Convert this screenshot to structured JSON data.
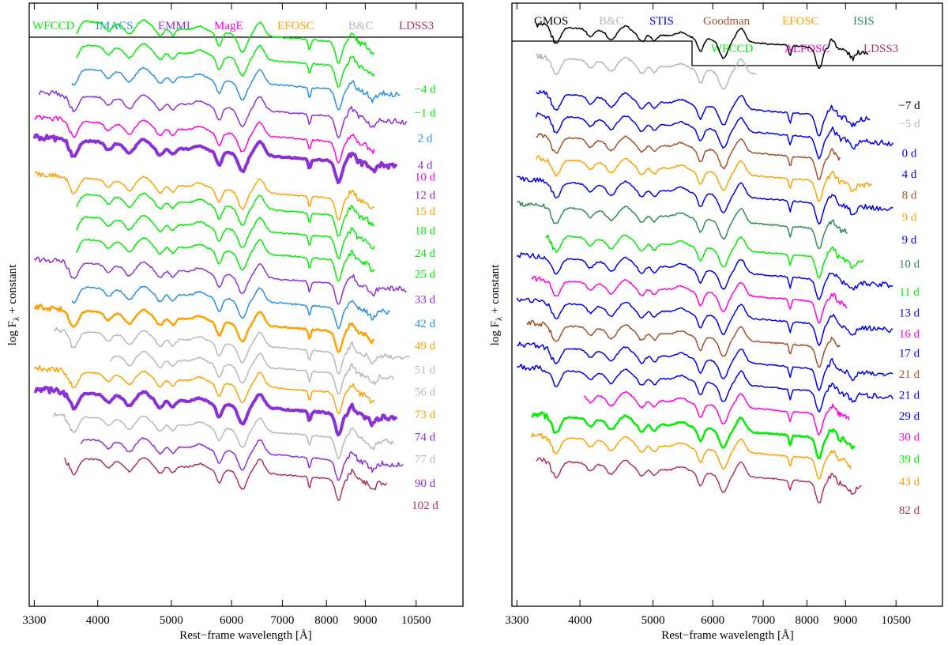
{
  "chart_data": [
    {
      "type": "line",
      "title": "",
      "xlabel": "Rest−frame wavelength [Å]",
      "ylabel": "log Fλ + constant",
      "ylabel_main": "log F",
      "ylabel_sub": "λ",
      "ylabel_tail": " + constant",
      "xlim": [
        3250,
        12100
      ],
      "x_scale": "log",
      "xticks": [
        3300,
        4000,
        5000,
        6000,
        7000,
        8000,
        9000,
        10500
      ],
      "xtick_labels": [
        "3300",
        "4000",
        "5000",
        "6000",
        "7000",
        "8000",
        "9000",
        "10500"
      ],
      "ylim": [
        0,
        20.2
      ],
      "legend": {
        "position": "top",
        "entries": [
          {
            "name": "WFCCD",
            "color": "#00ee00"
          },
          {
            "name": "IMACS",
            "color": "#2a8fe0"
          },
          {
            "name": "EMMI",
            "color": "#8b2fd6"
          },
          {
            "name": "MagE",
            "color": "#ff00e0"
          },
          {
            "name": "EFOSC",
            "color": "#ffa000"
          },
          {
            "name": "B&C",
            "color": "#b8b8b8"
          },
          {
            "name": "LDSS3",
            "color": "#b03060"
          }
        ]
      },
      "series": [
        {
          "name": "-4 d",
          "label": "−4 d",
          "instrument": "WFCCD",
          "color": "#00ee00",
          "x_range": [
            3750,
            9250
          ],
          "offset": 18.3,
          "label_level": 17.2,
          "width": 1.5
        },
        {
          "name": "-1 d",
          "label": "−1 d",
          "instrument": "WFCCD",
          "color": "#00ee00",
          "x_range": [
            3750,
            9250
          ],
          "offset": 17.5,
          "label_level": 16.4,
          "width": 1.5
        },
        {
          "name": "2 d",
          "label": "2 d",
          "instrument": "IMACS",
          "color": "#2a8fe0",
          "x_range": [
            3700,
            10000
          ],
          "offset": 16.7,
          "label_level": 15.55,
          "width": 1.5
        },
        {
          "name": "4 d",
          "label": "4 d",
          "instrument": "EMMI",
          "color": "#8b2fd6",
          "x_range": [
            3350,
            10200
          ],
          "offset": 15.8,
          "label_level": 14.65,
          "width": 1.5
        },
        {
          "name": "10 d",
          "label": "10 d",
          "instrument": "MagE",
          "color": "#ff00e0",
          "x_range": [
            3300,
            9250
          ],
          "offset": 14.95,
          "label_level": 14.25,
          "width": 1.5
        },
        {
          "name": "12 d",
          "label": "12 d",
          "instrument": "EMMI",
          "color": "#8b2fd6",
          "x_range": [
            3300,
            9900
          ],
          "offset": 14.3,
          "label_level": 13.65,
          "width": 4
        },
        {
          "name": "15 d",
          "label": "15 d",
          "instrument": "EFOSC",
          "color": "#ffa000",
          "x_range": [
            3300,
            9250
          ],
          "offset": 13.05,
          "label_level": 13.1,
          "width": 1.5
        },
        {
          "name": "18 d",
          "label": "18 d",
          "instrument": "WFCCD",
          "color": "#00ee00",
          "x_range": [
            3750,
            9250
          ],
          "offset": 12.5,
          "label_level": 12.45,
          "width": 1.5
        },
        {
          "name": "24 d",
          "label": "24 d",
          "instrument": "WFCCD",
          "color": "#00ee00",
          "x_range": [
            3750,
            9250
          ],
          "offset": 11.75,
          "label_level": 11.7,
          "width": 1.5
        },
        {
          "name": "25 d",
          "label": "25 d",
          "instrument": "WFCCD",
          "color": "#00ee00",
          "x_range": [
            3750,
            9250
          ],
          "offset": 11.0,
          "label_level": 11.0,
          "width": 1.5
        },
        {
          "name": "33 d",
          "label": "33 d",
          "instrument": "EMMI",
          "color": "#8b2fd6",
          "x_range": [
            3300,
            10200
          ],
          "offset": 10.2,
          "label_level": 10.15,
          "width": 1.5
        },
        {
          "name": "42 d",
          "label": "42 d",
          "instrument": "IMACS",
          "color": "#2a8fe0",
          "x_range": [
            3700,
            9700
          ],
          "offset": 9.4,
          "label_level": 9.35,
          "width": 1.5
        },
        {
          "name": "49 d",
          "label": "49 d",
          "instrument": "EFOSC",
          "color": "#ffa000",
          "x_range": [
            3300,
            9250
          ],
          "offset": 8.6,
          "label_level": 8.6,
          "width": 2.5
        },
        {
          "name": "51 d",
          "label": "51 d",
          "instrument": "B&C",
          "color": "#b8b8b8",
          "x_range": [
            3500,
            10300
          ],
          "offset": 7.9,
          "label_level": 7.8,
          "width": 1.5
        },
        {
          "name": "56 d",
          "label": "56 d",
          "instrument": "B&C",
          "color": "#b8b8b8",
          "x_range": [
            4150,
            9800
          ],
          "offset": 7.2,
          "label_level": 7.05,
          "width": 1.5
        },
        {
          "name": "73 d",
          "label": "73 d",
          "instrument": "EFOSC",
          "color": "#ffa000",
          "x_range": [
            3300,
            9250
          ],
          "offset": 6.55,
          "label_level": 6.3,
          "width": 1.5
        },
        {
          "name": "74 d",
          "label": "74 d",
          "instrument": "EMMI",
          "color": "#8b2fd6",
          "x_range": [
            3300,
            9900
          ],
          "offset": 5.85,
          "label_level": 5.55,
          "width": 4
        },
        {
          "name": "77 d",
          "label": "77 d",
          "instrument": "B&C",
          "color": "#b8b8b8",
          "x_range": [
            3500,
            9800
          ],
          "offset": 5.05,
          "label_level": 4.8,
          "width": 1.5
        },
        {
          "name": "90 d",
          "label": "90 d",
          "instrument": "EMMI",
          "color": "#8b2fd6",
          "x_range": [
            3800,
            10100
          ],
          "offset": 4.3,
          "label_level": 4.0,
          "width": 1.5
        },
        {
          "name": "102 d",
          "label": "102 d",
          "instrument": "LDSS3",
          "color": "#b03060",
          "x_range": [
            3620,
            9600
          ],
          "offset": 3.65,
          "label_level": 3.25,
          "width": 1.5
        }
      ]
    },
    {
      "type": "line",
      "title": "",
      "xlabel": "Rest−frame wavelength [Å]",
      "ylabel": "log Fλ + constant",
      "ylabel_main": "log F",
      "ylabel_sub": "λ",
      "ylabel_tail": " + constant",
      "xlim": [
        3250,
        12100
      ],
      "x_scale": "log",
      "xticks": [
        3300,
        4000,
        5000,
        6000,
        7000,
        8000,
        9000,
        10500
      ],
      "xtick_labels": [
        "3300",
        "4000",
        "5000",
        "6000",
        "7000",
        "8000",
        "9000",
        "10500"
      ],
      "ylim": [
        0,
        20.2
      ],
      "legend": {
        "position": "top",
        "entries": [
          {
            "name": "GMOS",
            "color": "#000000"
          },
          {
            "name": "B&C",
            "color": "#b8b8b8"
          },
          {
            "name": "STIS",
            "color": "#0000ee"
          },
          {
            "name": "Goodman",
            "color": "#a0522d"
          },
          {
            "name": "EFOSC",
            "color": "#ffa000"
          },
          {
            "name": "ISIS",
            "color": "#2e8b57"
          },
          {
            "name": "WFCCD",
            "color": "#00ee00"
          },
          {
            "name": "ALFOSC",
            "color": "#ff00e0"
          },
          {
            "name": "LDSS3",
            "color": "#b03060"
          }
        ]
      },
      "series": [
        {
          "name": "-7 d",
          "label": "−7 d",
          "instrument": "GMOS",
          "color": "#000000",
          "x_range": [
            3500,
            9650
          ],
          "offset": 18.1,
          "label_level": 16.65,
          "width": 1.5
        },
        {
          "name": "-5 d",
          "label": "−5 d",
          "instrument": "B&C",
          "color": "#b8b8b8",
          "x_range": [
            3500,
            6850
          ],
          "offset": 17.05,
          "label_level": 16.05,
          "width": 1.5
        },
        {
          "name": "0 d",
          "label": "0 d",
          "instrument": "STIS",
          "color": "#0000ee",
          "x_range": [
            3500,
            9700
          ],
          "offset": 15.85,
          "label_level": 15.05,
          "width": 1.5
        },
        {
          "name": "4 d",
          "label": "4 d",
          "instrument": "STIS",
          "color": "#0000ee",
          "x_range": [
            3500,
            10400
          ],
          "offset": 15.1,
          "label_level": 14.35,
          "width": 1.5
        },
        {
          "name": "8 d",
          "label": "8 d",
          "instrument": "Goodman",
          "color": "#a0522d",
          "x_range": [
            3500,
            8850
          ],
          "offset": 14.4,
          "label_level": 13.65,
          "width": 1.5
        },
        {
          "name": "9 d",
          "label": "9 d",
          "instrument": "EFOSC",
          "color": "#ffa000",
          "x_range": [
            3500,
            9750
          ],
          "offset": 13.65,
          "label_level": 12.9,
          "width": 1.5
        },
        {
          "name": "9 d",
          "label": "9 d",
          "instrument": "STIS",
          "color": "#0000ee",
          "x_range": [
            3300,
            10400
          ],
          "offset": 12.9,
          "label_level": 12.15,
          "width": 1.5
        },
        {
          "name": "10 d",
          "label": "10 d",
          "instrument": "ISIS",
          "color": "#2e8b57",
          "x_range": [
            3300,
            9050
          ],
          "offset": 12.05,
          "label_level": 11.35,
          "width": 1.5
        },
        {
          "name": "11 d",
          "label": "11 d",
          "instrument": "WFCCD",
          "color": "#00ee00",
          "x_range": [
            3600,
            9500
          ],
          "offset": 11.1,
          "label_level": 10.4,
          "width": 1.5
        },
        {
          "name": "13 d",
          "label": "13 d",
          "instrument": "STIS",
          "color": "#0000ee",
          "x_range": [
            3300,
            10400
          ],
          "offset": 10.35,
          "label_level": 9.7,
          "width": 1.5
        },
        {
          "name": "16 d",
          "label": "16 d",
          "instrument": "ALFOSC",
          "color": "#ff00e0",
          "x_range": [
            3450,
            9050
          ],
          "offset": 9.6,
          "label_level": 9.0,
          "width": 1.5
        },
        {
          "name": "17 d",
          "label": "17 d",
          "instrument": "STIS",
          "color": "#0000ee",
          "x_range": [
            3300,
            10400
          ],
          "offset": 8.85,
          "label_level": 8.35,
          "width": 1.5
        },
        {
          "name": "21 d",
          "label": "21 d",
          "instrument": "Goodman",
          "color": "#a0522d",
          "x_range": [
            3400,
            8850
          ],
          "offset": 8.1,
          "label_level": 7.65,
          "width": 1.5
        },
        {
          "name": "21 d",
          "label": "21 d",
          "instrument": "STIS",
          "color": "#0000ee",
          "x_range": [
            3300,
            10400
          ],
          "offset": 7.35,
          "label_level": 6.95,
          "width": 1.5
        },
        {
          "name": "29 d",
          "label": "29 d",
          "instrument": "STIS",
          "color": "#0000ee",
          "x_range": [
            3300,
            10400
          ],
          "offset": 6.6,
          "label_level": 6.25,
          "width": 1.5
        },
        {
          "name": "30 d",
          "label": "30 d",
          "instrument": "ALFOSC",
          "color": "#ff00e0",
          "x_range": [
            4050,
            9100
          ],
          "offset": 5.85,
          "label_level": 5.55,
          "width": 1.5
        },
        {
          "name": "39 d",
          "label": "39 d",
          "instrument": "WFCCD",
          "color": "#00ee00",
          "x_range": [
            3450,
            9250
          ],
          "offset": 5.05,
          "label_level": 4.8,
          "width": 2.5
        },
        {
          "name": "43 d",
          "label": "43 d",
          "instrument": "EFOSC",
          "color": "#ffa000",
          "x_range": [
            3450,
            9150
          ],
          "offset": 4.35,
          "label_level": 4.05,
          "width": 1.5
        },
        {
          "name": "82 d",
          "label": "82 d",
          "instrument": "LDSS3",
          "color": "#b03060",
          "x_range": [
            3500,
            9450
          ],
          "offset": 3.55,
          "label_level": 3.1,
          "width": 1.5
        }
      ]
    }
  ]
}
